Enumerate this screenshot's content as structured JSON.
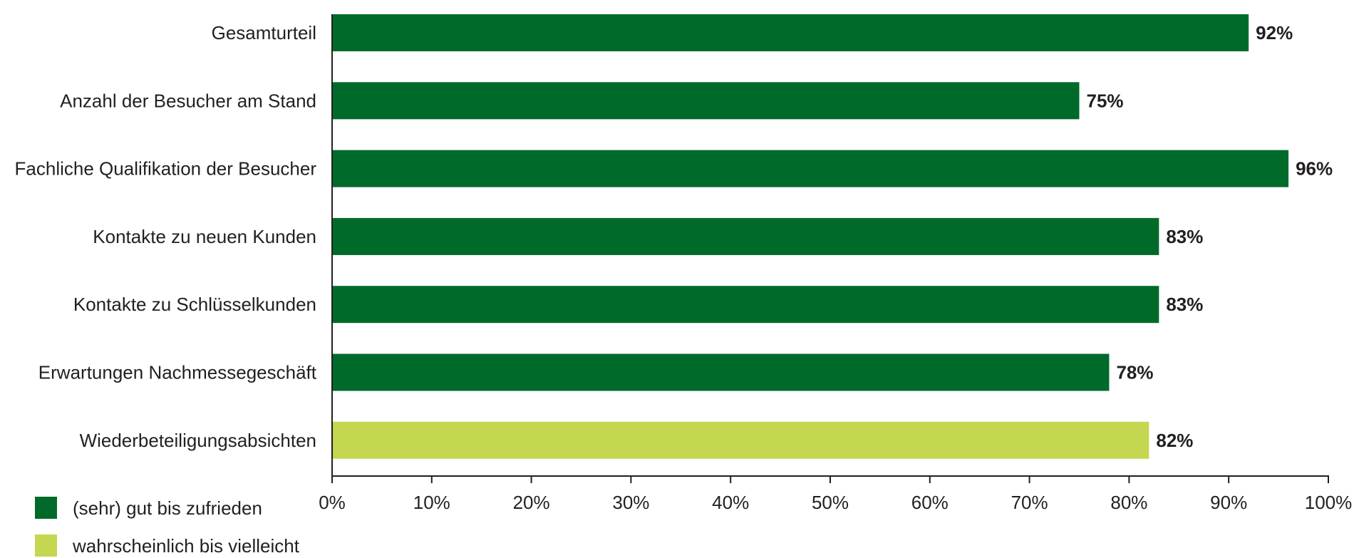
{
  "chart_data": {
    "type": "bar",
    "orientation": "horizontal",
    "categories": [
      "Gesamturteil",
      "Anzahl der Besucher am Stand",
      "Fachliche Qualifikation der Besucher",
      "Kontakte zu neuen Kunden",
      "Kontakte zu Schlüsselkunden",
      "Erwartungen Nachmessegeschäft",
      "Wiederbeteiligungsabsichten"
    ],
    "values": [
      92,
      75,
      96,
      83,
      83,
      78,
      82
    ],
    "value_labels": [
      "92%",
      "75%",
      "96%",
      "83%",
      "83%",
      "78%",
      "82%"
    ],
    "bar_series": [
      0,
      0,
      0,
      0,
      0,
      0,
      1
    ],
    "series": [
      {
        "name": "(sehr) gut bis zufrieden",
        "color": "#006a2b"
      },
      {
        "name": "wahrscheinlich bis vielleicht",
        "color": "#c5d651"
      }
    ],
    "xlim": [
      0,
      100
    ],
    "x_ticks": [
      0,
      10,
      20,
      30,
      40,
      50,
      60,
      70,
      80,
      90,
      100
    ],
    "x_tick_labels": [
      "0%",
      "10%",
      "20%",
      "30%",
      "40%",
      "50%",
      "60%",
      "70%",
      "80%",
      "90%",
      "100%"
    ],
    "grid": false,
    "legend_position": "bottom-left",
    "title": "",
    "xlabel": "",
    "ylabel": ""
  }
}
